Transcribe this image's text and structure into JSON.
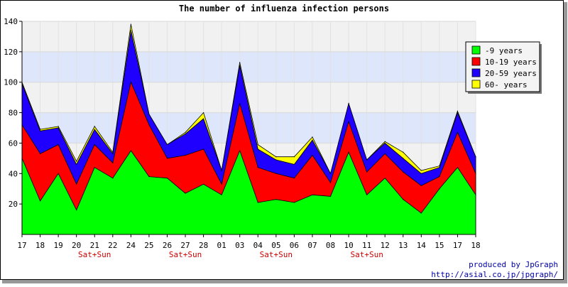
{
  "chart_data": {
    "type": "area",
    "stacked": true,
    "title": "The number of influenza infection persons",
    "xlabel": "",
    "ylabel": "",
    "ylim": [
      0,
      140
    ],
    "yticks": [
      20,
      40,
      60,
      80,
      100,
      120,
      140
    ],
    "grid": true,
    "band_fill": "alternating light blue / light gray horizontal bands",
    "legend_position": "top-right",
    "x": [
      "17",
      "18",
      "19",
      "20",
      "21",
      "22",
      "24",
      "25",
      "26",
      "27",
      "28",
      "01",
      "03",
      "04",
      "05",
      "06",
      "07",
      "08",
      "10",
      "11",
      "12",
      "13",
      "14",
      "15",
      "17",
      "18"
    ],
    "x_sublabels": [
      "",
      "",
      "",
      "",
      "Sat+Sun",
      "",
      "",
      "",
      "",
      "Sat+Sun",
      "",
      "",
      "",
      "",
      "Sat+Sun",
      "",
      "",
      "",
      "",
      "Sat+Sun",
      "",
      "",
      "",
      "",
      "",
      ""
    ],
    "series": [
      {
        "name": "-9 years",
        "color": "#00ff00",
        "values": [
          50,
          22,
          40,
          16,
          44,
          37,
          55,
          38,
          37,
          27,
          33,
          26,
          55,
          21,
          23,
          21,
          26,
          25,
          54,
          26,
          37,
          23,
          14,
          30,
          44,
          26
        ]
      },
      {
        "name": "10-19 years",
        "color": "#ff0000",
        "values": [
          22,
          31,
          19,
          17,
          15,
          10,
          45,
          34,
          13,
          25,
          23,
          7,
          31,
          23,
          17,
          16,
          26,
          9,
          20,
          15,
          16,
          18,
          18,
          8,
          23,
          14
        ]
      },
      {
        "name": "20-59 years",
        "color": "#1f00ff",
        "values": [
          27,
          15,
          11,
          13,
          10,
          6,
          34,
          7,
          9,
          14,
          20,
          9,
          25,
          12,
          9,
          9,
          10,
          6,
          12,
          8,
          7,
          9,
          8,
          6,
          13,
          11
        ]
      },
      {
        "name": "60- years",
        "color": "#ffff00",
        "values": [
          1,
          1,
          1,
          2,
          2,
          1,
          4,
          0,
          0,
          1,
          4,
          0,
          2,
          3,
          2,
          5,
          2,
          0,
          0,
          0,
          1,
          4,
          2,
          1,
          1,
          0
        ]
      }
    ],
    "credits": [
      "produced by JpGraph",
      "http://asial.co.jp/jpgraph/"
    ]
  },
  "colors": {
    "band_blue": "#dde6fb",
    "band_gray": "#f1f1f1",
    "sublabel_red": "#cc0000",
    "credit_blue": "#0000aa"
  }
}
